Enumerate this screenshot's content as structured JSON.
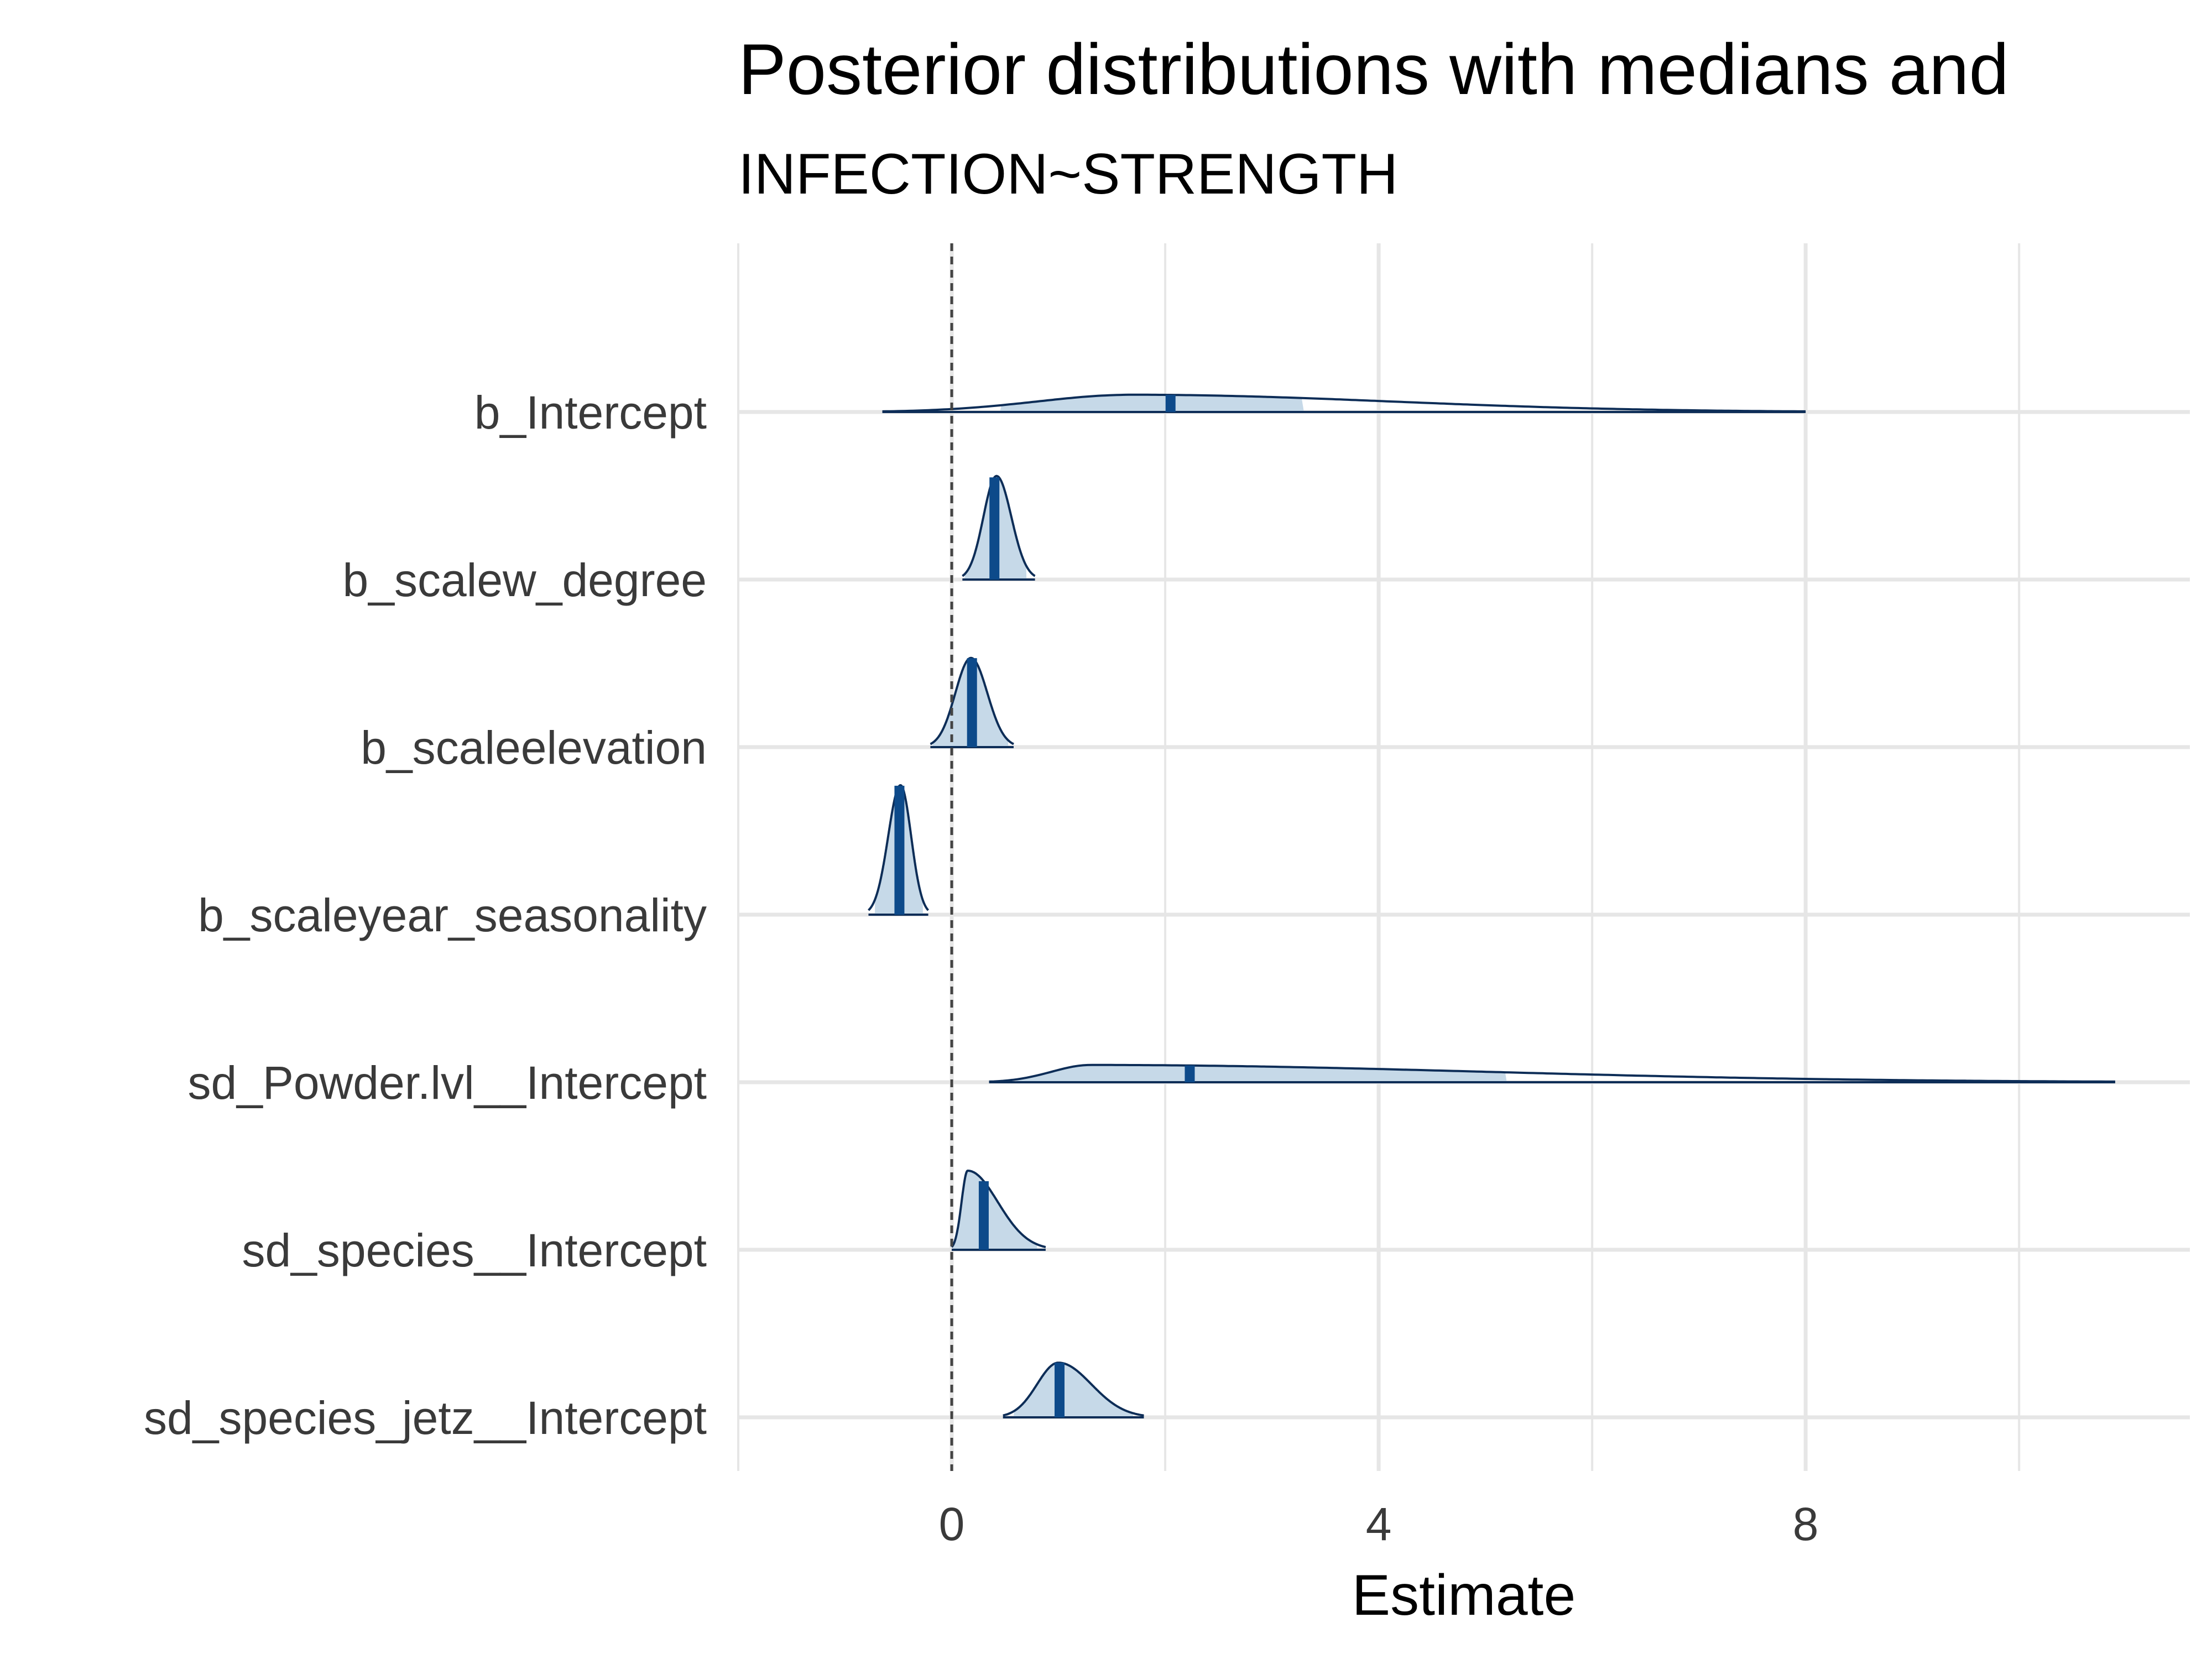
{
  "chart_data": {
    "type": "ridgeline",
    "title": "Posterior distributions with medians and",
    "subtitle": "INFECTION~STRENGTH",
    "xlabel": "Estimate",
    "ylabel": "",
    "xlim": [
      -2.0,
      11.6
    ],
    "x_ticks": [
      0,
      4,
      8
    ],
    "grid": true,
    "reference_line": 0,
    "colors": {
      "fill": "#c6d9e8",
      "outline": "#0d2d57",
      "median": "#0d4a8a",
      "grid": "#e6e6e6",
      "refline": "#444444"
    },
    "parameters": [
      {
        "name": "b_Intercept",
        "median": 2.05,
        "interval": [
          0.45,
          3.3
        ],
        "range": [
          -0.65,
          8.0
        ],
        "peak": 1.7,
        "height": 0.12
      },
      {
        "name": "b_scalew_degree",
        "median": 0.4,
        "interval": [
          0.12,
          0.7
        ],
        "range": [
          0.1,
          0.78
        ],
        "peak": 0.42,
        "height": 0.72
      },
      {
        "name": "b_scaleelevation",
        "median": 0.19,
        "interval": [
          -0.18,
          0.53
        ],
        "range": [
          -0.2,
          0.58
        ],
        "peak": 0.18,
        "height": 0.62
      },
      {
        "name": "b_scaleyear_seasonality",
        "median": -0.49,
        "interval": [
          -0.72,
          -0.27
        ],
        "range": [
          -0.78,
          -0.22
        ],
        "peak": -0.48,
        "height": 0.9
      },
      {
        "name": "sd_Powder.lvl__Intercept",
        "median": 2.23,
        "interval": [
          0.6,
          5.2
        ],
        "range": [
          0.35,
          10.9
        ],
        "peak": 1.3,
        "height": 0.12
      },
      {
        "name": "sd_species__Intercept",
        "median": 0.3,
        "interval": [
          0.01,
          0.8
        ],
        "range": [
          0.0,
          0.88
        ],
        "peak": 0.15,
        "height": 0.55
      },
      {
        "name": "sd_species_jetz__Intercept",
        "median": 1.01,
        "interval": [
          0.58,
          1.7
        ],
        "range": [
          0.48,
          1.8
        ],
        "peak": 1.0,
        "height": 0.38
      }
    ]
  }
}
